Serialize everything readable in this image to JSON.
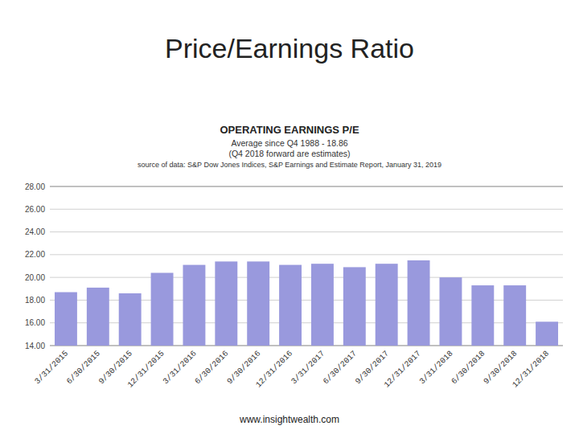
{
  "chart_data": {
    "type": "bar",
    "title": "Price/Earnings Ratio",
    "subtitle": "OPERATING EARNINGS P/E",
    "annotations": [
      "Average since Q4 1988 - 18.86",
      "(Q4 2018 forward are estimates)",
      "source of data: S&P Dow Jones Indices, S&P Earnings and Estimate Report, January 31, 2019",
      "www.insightwealth.com"
    ],
    "categories": [
      "3/31/2015",
      "6/30/2015",
      "9/30/2015",
      "12/31/2015",
      "3/31/2016",
      "6/30/2016",
      "9/30/2016",
      "12/31/2016",
      "3/31/2017",
      "6/30/2017",
      "9/30/2017",
      "12/31/2017",
      "3/31/2018",
      "6/30/2018",
      "9/30/2018",
      "12/31/2018"
    ],
    "values": [
      18.7,
      19.1,
      18.6,
      20.4,
      21.1,
      21.4,
      21.4,
      21.1,
      21.2,
      20.9,
      21.2,
      21.5,
      20.0,
      19.3,
      19.3,
      16.1
    ],
    "color": "#9999dd",
    "ylim": [
      14.0,
      28.0
    ],
    "yticks": [
      {
        "value": 14.0,
        "label": "14.00"
      },
      {
        "value": 16.0,
        "label": "16.00"
      },
      {
        "value": 18.0,
        "label": "18.00"
      },
      {
        "value": 20.0,
        "label": "20.00"
      },
      {
        "value": 22.0,
        "label": "22.00"
      },
      {
        "value": 24.0,
        "label": "24.00"
      },
      {
        "value": 26.0,
        "label": "26.00"
      },
      {
        "value": 28.0,
        "label": "28.00"
      }
    ],
    "grid": true
  }
}
